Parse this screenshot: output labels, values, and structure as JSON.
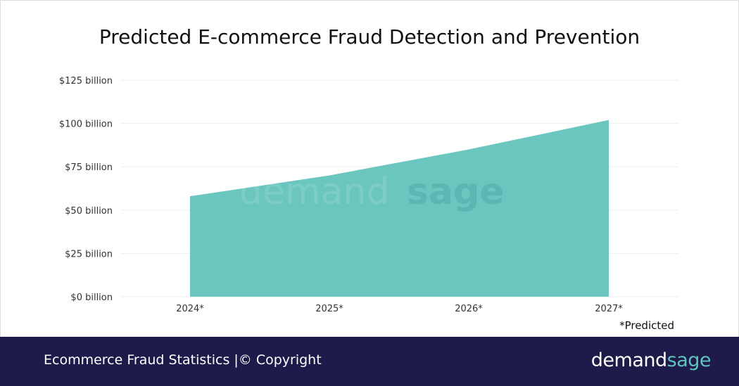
{
  "chart_data": {
    "type": "area",
    "title": "Predicted E-commerce Fraud Detection and Prevention",
    "categories": [
      "2024*",
      "2025*",
      "2026*",
      "2027*"
    ],
    "values": [
      58,
      70,
      85,
      102
    ],
    "unit": "billion USD",
    "ylim": [
      0,
      125
    ],
    "yticks": [
      "$0 billion",
      "$25 billion",
      "$50 billion",
      "$75 billion",
      "$100 billion",
      "$125 billion"
    ],
    "ytick_values": [
      0,
      25,
      50,
      75,
      100,
      125
    ],
    "grid": true,
    "color": "#6cc6c0",
    "note": "*Predicted"
  },
  "watermark": {
    "part1": "demand",
    "part2": "sage"
  },
  "footer": {
    "text": "Ecommerce Fraud Statistics  |© Copyright",
    "logo_part1": "demand",
    "logo_part2": "sage",
    "background": "#1e1a4a",
    "accent": "#5ec4bd"
  }
}
